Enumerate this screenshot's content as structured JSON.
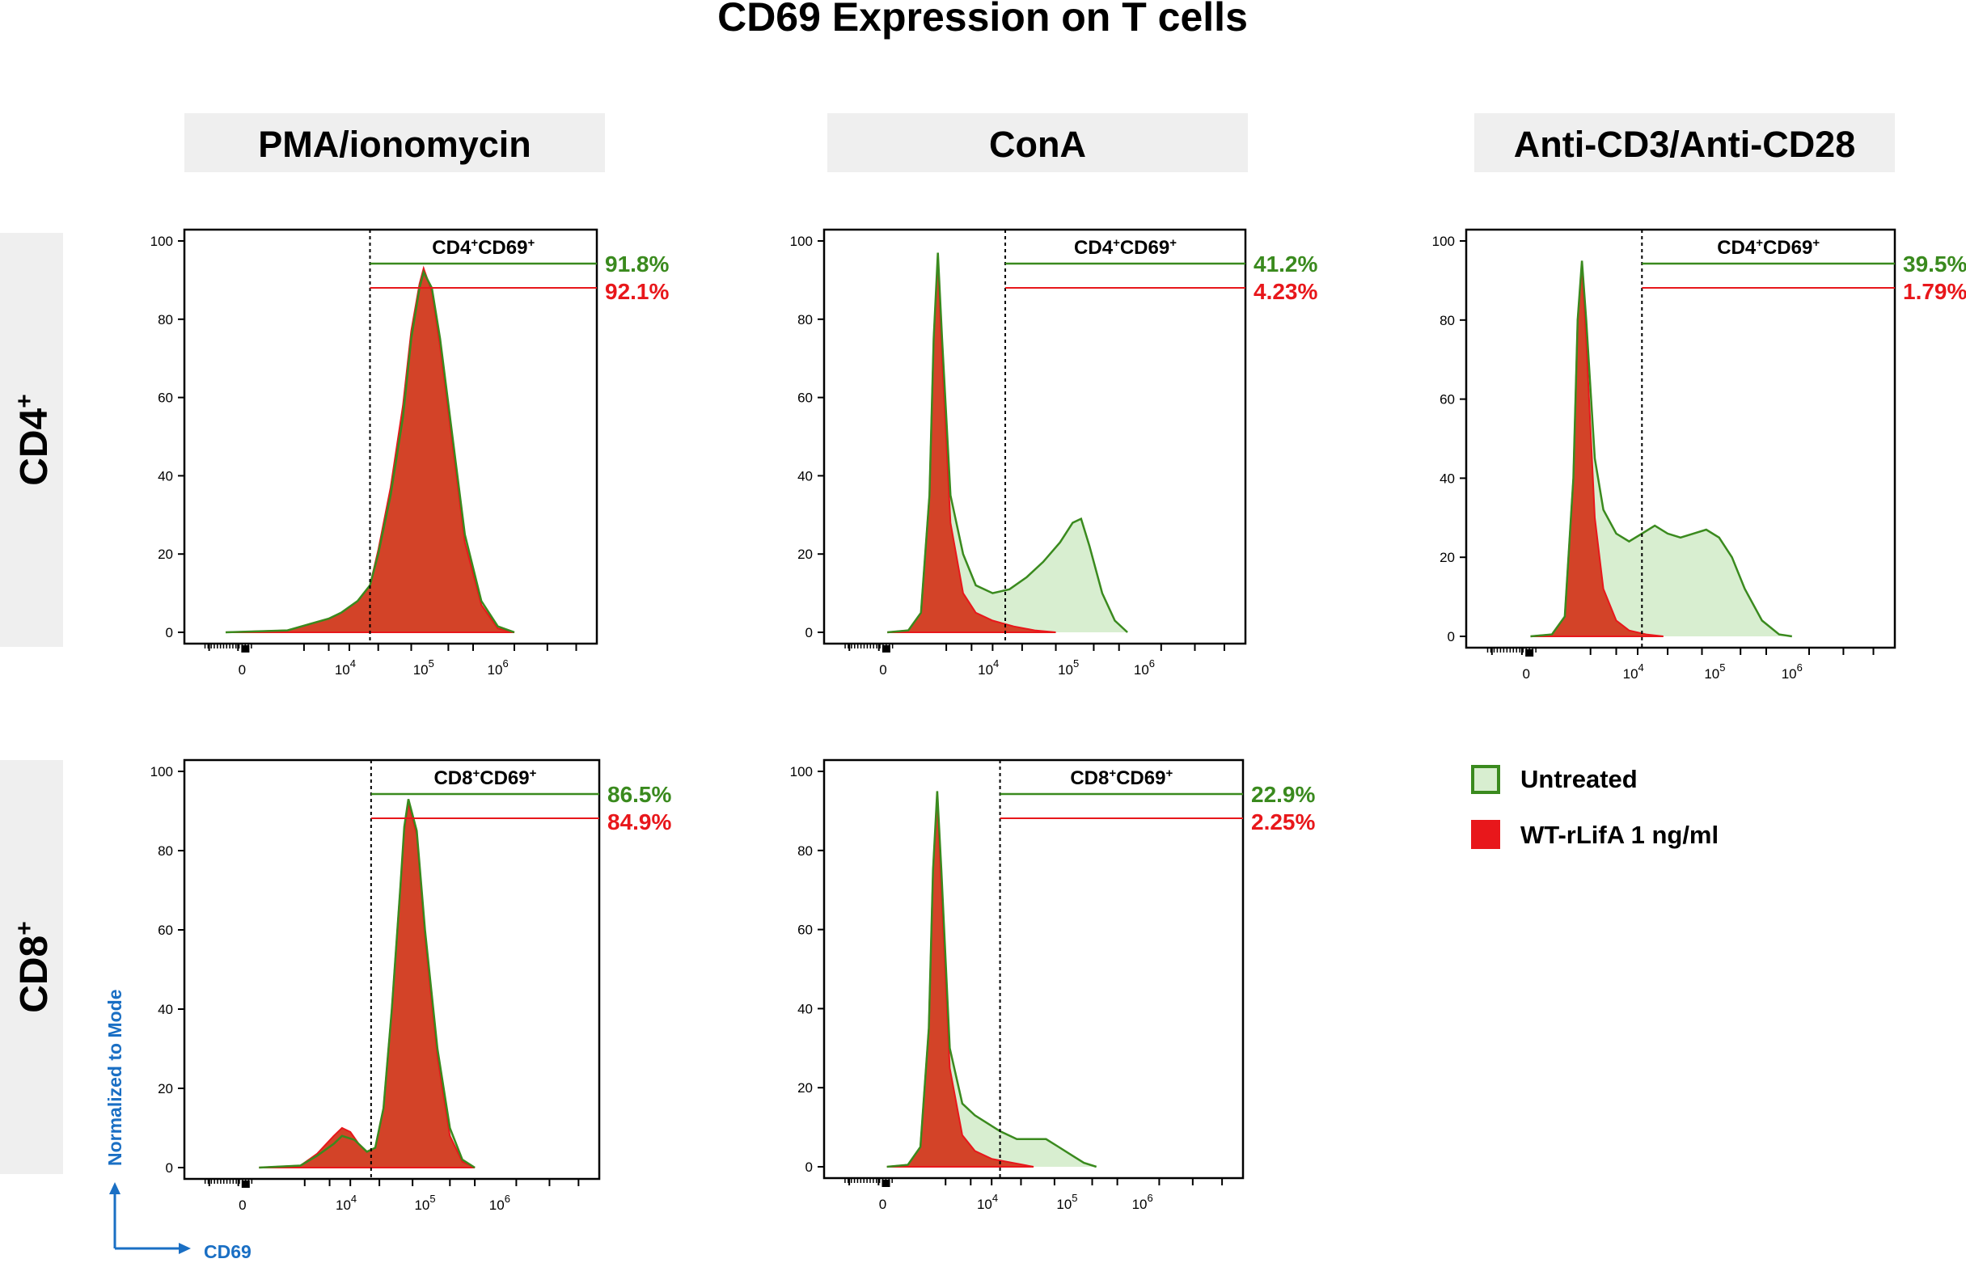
{
  "chart_data": {
    "type": "histogram-panel",
    "title": "CD69 Expression on T cells",
    "conditions": [
      "PMA/ionomycin",
      "ConA",
      "Anti-CD3/Anti-CD28"
    ],
    "rows": [
      "CD4",
      "CD8"
    ],
    "row_superscript": "+",
    "x_axis": {
      "label": "CD69",
      "scale": "biexponential",
      "tick_base": "10",
      "tick_labels": [
        {
          "base": "0",
          "exp": ""
        },
        {
          "base": "10",
          "exp": "4"
        },
        {
          "base": "10",
          "exp": "5"
        },
        {
          "base": "10",
          "exp": "6"
        }
      ]
    },
    "y_axis": {
      "label": "Normalized to Mode",
      "ylim": [
        0,
        100
      ],
      "tick_labels": [
        "0",
        "20",
        "40",
        "60",
        "80",
        "100"
      ]
    },
    "legend": [
      {
        "name": "Untreated",
        "color": "#3a8a1e",
        "fill": "#d8eed0",
        "style": "outline"
      },
      {
        "name": "WT-rLifA 1 ng/ml",
        "color": "#e8171b",
        "fill": "#e8171b",
        "style": "solid"
      }
    ],
    "panels": [
      {
        "condition": "PMA/ionomycin",
        "row": "CD4",
        "gate_label": {
          "base": "CD4",
          "sup1": "+",
          "mid": "CD69",
          "sup2": "+"
        },
        "untreated_pct": "91.8%",
        "treated_pct": "92.1%",
        "gate_position": 0.45,
        "untreated": [
          [
            0.1,
            0
          ],
          [
            0.25,
            0.5
          ],
          [
            0.3,
            2
          ],
          [
            0.35,
            3.5
          ],
          [
            0.38,
            5
          ],
          [
            0.42,
            8
          ],
          [
            0.45,
            12
          ],
          [
            0.47,
            20
          ],
          [
            0.5,
            35
          ],
          [
            0.53,
            55
          ],
          [
            0.55,
            75
          ],
          [
            0.57,
            88
          ],
          [
            0.58,
            92
          ],
          [
            0.6,
            88
          ],
          [
            0.62,
            75
          ],
          [
            0.65,
            50
          ],
          [
            0.68,
            25
          ],
          [
            0.72,
            8
          ],
          [
            0.76,
            1.5
          ],
          [
            0.8,
            0
          ]
        ],
        "treated": [
          [
            0.1,
            0
          ],
          [
            0.25,
            0.5
          ],
          [
            0.3,
            2
          ],
          [
            0.35,
            3.5
          ],
          [
            0.38,
            5
          ],
          [
            0.42,
            8
          ],
          [
            0.45,
            12
          ],
          [
            0.47,
            21
          ],
          [
            0.5,
            37
          ],
          [
            0.53,
            58
          ],
          [
            0.55,
            77
          ],
          [
            0.57,
            89
          ],
          [
            0.58,
            93
          ],
          [
            0.6,
            87
          ],
          [
            0.62,
            73
          ],
          [
            0.65,
            48
          ],
          [
            0.68,
            23
          ],
          [
            0.72,
            7
          ],
          [
            0.76,
            1
          ],
          [
            0.8,
            0
          ]
        ]
      },
      {
        "condition": "ConA",
        "row": "CD4",
        "gate_label": {
          "base": "CD4",
          "sup1": "+",
          "mid": "CD69",
          "sup2": "+"
        },
        "untreated_pct": "41.2%",
        "treated_pct": "4.23%",
        "gate_position": 0.43,
        "untreated": [
          [
            0.15,
            0
          ],
          [
            0.2,
            0.5
          ],
          [
            0.23,
            5
          ],
          [
            0.25,
            35
          ],
          [
            0.26,
            75
          ],
          [
            0.27,
            97
          ],
          [
            0.28,
            75
          ],
          [
            0.3,
            35
          ],
          [
            0.33,
            20
          ],
          [
            0.36,
            12
          ],
          [
            0.4,
            10
          ],
          [
            0.44,
            11
          ],
          [
            0.48,
            14
          ],
          [
            0.52,
            18
          ],
          [
            0.56,
            23
          ],
          [
            0.59,
            28
          ],
          [
            0.61,
            29
          ],
          [
            0.63,
            22
          ],
          [
            0.66,
            10
          ],
          [
            0.69,
            3
          ],
          [
            0.72,
            0
          ]
        ],
        "treated": [
          [
            0.15,
            0
          ],
          [
            0.2,
            0.5
          ],
          [
            0.23,
            5
          ],
          [
            0.25,
            35
          ],
          [
            0.26,
            75
          ],
          [
            0.27,
            96
          ],
          [
            0.28,
            70
          ],
          [
            0.3,
            28
          ],
          [
            0.33,
            10
          ],
          [
            0.36,
            5
          ],
          [
            0.4,
            3
          ],
          [
            0.45,
            1.5
          ],
          [
            0.5,
            0.5
          ],
          [
            0.55,
            0
          ]
        ]
      },
      {
        "condition": "Anti-CD3/Anti-CD28",
        "row": "CD4",
        "gate_label": {
          "base": "CD4",
          "sup1": "+",
          "mid": "CD69",
          "sup2": "+"
        },
        "untreated_pct": "39.5%",
        "treated_pct": "1.79%",
        "gate_position": 0.41,
        "untreated": [
          [
            0.15,
            0
          ],
          [
            0.2,
            0.5
          ],
          [
            0.23,
            5
          ],
          [
            0.25,
            40
          ],
          [
            0.26,
            80
          ],
          [
            0.27,
            95
          ],
          [
            0.28,
            80
          ],
          [
            0.3,
            45
          ],
          [
            0.32,
            32
          ],
          [
            0.35,
            26
          ],
          [
            0.38,
            24
          ],
          [
            0.41,
            26
          ],
          [
            0.44,
            28
          ],
          [
            0.47,
            26
          ],
          [
            0.5,
            25
          ],
          [
            0.53,
            26
          ],
          [
            0.56,
            27
          ],
          [
            0.59,
            25
          ],
          [
            0.62,
            20
          ],
          [
            0.65,
            12
          ],
          [
            0.69,
            4
          ],
          [
            0.73,
            0.5
          ],
          [
            0.76,
            0
          ]
        ],
        "treated": [
          [
            0.15,
            0
          ],
          [
            0.2,
            0.5
          ],
          [
            0.23,
            5
          ],
          [
            0.25,
            40
          ],
          [
            0.26,
            80
          ],
          [
            0.27,
            94
          ],
          [
            0.28,
            75
          ],
          [
            0.3,
            30
          ],
          [
            0.32,
            12
          ],
          [
            0.35,
            4
          ],
          [
            0.38,
            1.5
          ],
          [
            0.42,
            0.5
          ],
          [
            0.46,
            0
          ]
        ]
      },
      {
        "condition": "PMA/ionomycin",
        "row": "CD8",
        "gate_label": {
          "base": "CD8",
          "sup1": "+",
          "mid": "CD69",
          "sup2": "+"
        },
        "untreated_pct": "86.5%",
        "treated_pct": "84.9%",
        "gate_position": 0.45,
        "untreated": [
          [
            0.18,
            0
          ],
          [
            0.28,
            0.5
          ],
          [
            0.32,
            3
          ],
          [
            0.36,
            6
          ],
          [
            0.38,
            8
          ],
          [
            0.41,
            7
          ],
          [
            0.44,
            4
          ],
          [
            0.46,
            5
          ],
          [
            0.48,
            15
          ],
          [
            0.5,
            40
          ],
          [
            0.52,
            70
          ],
          [
            0.53,
            86
          ],
          [
            0.54,
            93
          ],
          [
            0.56,
            85
          ],
          [
            0.58,
            60
          ],
          [
            0.61,
            30
          ],
          [
            0.64,
            10
          ],
          [
            0.67,
            2
          ],
          [
            0.7,
            0
          ]
        ],
        "treated": [
          [
            0.18,
            0
          ],
          [
            0.28,
            0.5
          ],
          [
            0.32,
            3.5
          ],
          [
            0.36,
            8
          ],
          [
            0.38,
            10
          ],
          [
            0.4,
            9
          ],
          [
            0.42,
            6
          ],
          [
            0.44,
            4
          ],
          [
            0.46,
            5
          ],
          [
            0.48,
            15
          ],
          [
            0.5,
            40
          ],
          [
            0.52,
            70
          ],
          [
            0.53,
            85
          ],
          [
            0.54,
            92
          ],
          [
            0.56,
            84
          ],
          [
            0.58,
            58
          ],
          [
            0.61,
            28
          ],
          [
            0.64,
            8
          ],
          [
            0.67,
            1.5
          ],
          [
            0.7,
            0
          ]
        ]
      },
      {
        "condition": "ConA",
        "row": "CD8",
        "gate_label": {
          "base": "CD8",
          "sup1": "+",
          "mid": "CD69",
          "sup2": "+"
        },
        "untreated_pct": "22.9%",
        "treated_pct": "2.25%",
        "gate_position": 0.42,
        "untreated": [
          [
            0.15,
            0
          ],
          [
            0.2,
            0.5
          ],
          [
            0.23,
            5
          ],
          [
            0.25,
            35
          ],
          [
            0.26,
            75
          ],
          [
            0.27,
            95
          ],
          [
            0.28,
            75
          ],
          [
            0.3,
            30
          ],
          [
            0.33,
            16
          ],
          [
            0.36,
            13
          ],
          [
            0.39,
            11
          ],
          [
            0.42,
            9
          ],
          [
            0.46,
            7
          ],
          [
            0.5,
            7
          ],
          [
            0.53,
            7
          ],
          [
            0.56,
            5
          ],
          [
            0.59,
            3
          ],
          [
            0.62,
            1
          ],
          [
            0.65,
            0
          ]
        ],
        "treated": [
          [
            0.15,
            0
          ],
          [
            0.2,
            0.5
          ],
          [
            0.23,
            5
          ],
          [
            0.25,
            35
          ],
          [
            0.26,
            75
          ],
          [
            0.27,
            94
          ],
          [
            0.28,
            70
          ],
          [
            0.3,
            25
          ],
          [
            0.33,
            8
          ],
          [
            0.36,
            4
          ],
          [
            0.4,
            2
          ],
          [
            0.45,
            1
          ],
          [
            0.5,
            0
          ]
        ]
      }
    ]
  }
}
